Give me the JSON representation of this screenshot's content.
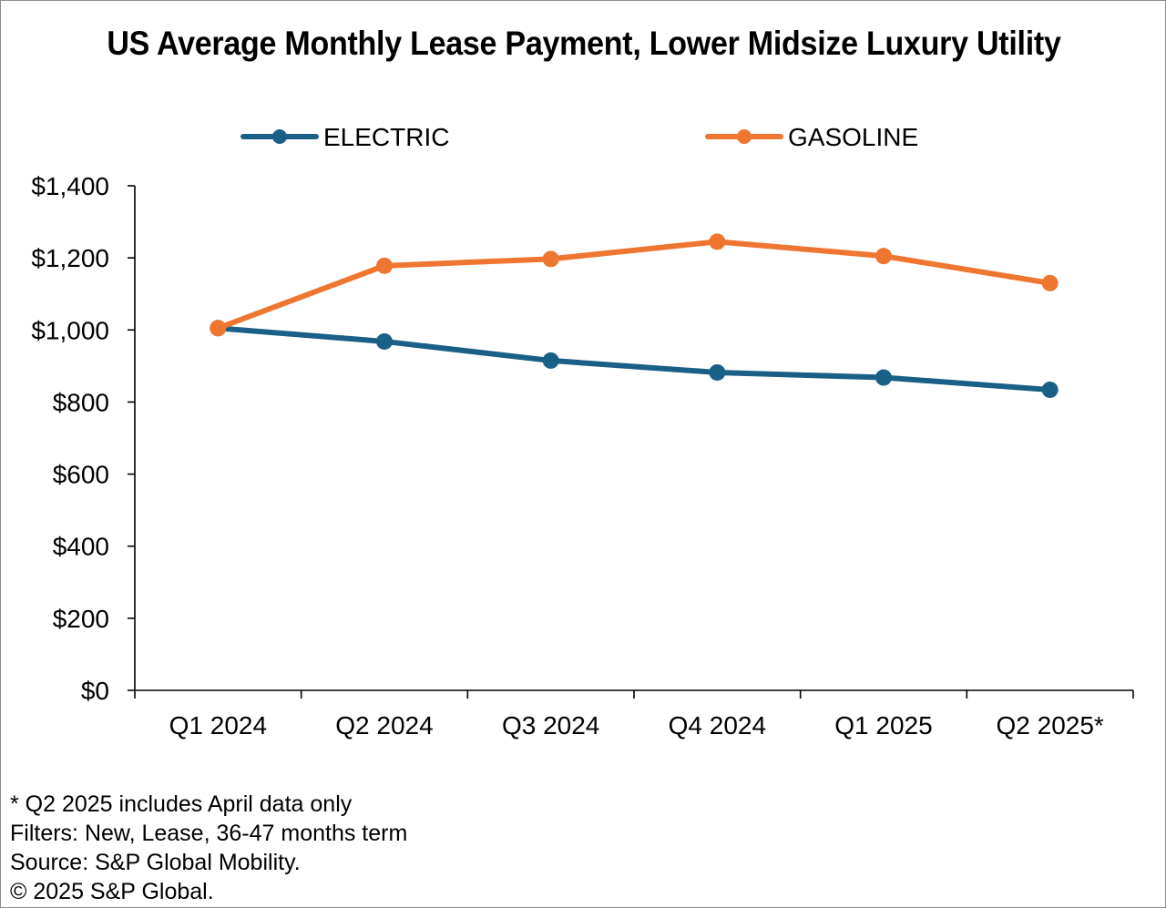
{
  "chart_data": {
    "type": "line",
    "title": "US Average Monthly Lease Payment, Lower Midsize  Luxury Utility",
    "categories": [
      "Q1 2024",
      "Q2 2024",
      "Q3 2024",
      "Q4 2024",
      "Q1 2025",
      "Q2 2025*"
    ],
    "series": [
      {
        "name": "ELECTRIC",
        "color": "#1a5f85",
        "values": [
          1005,
          968,
          915,
          882,
          868,
          834
        ]
      },
      {
        "name": "GASOLINE",
        "color": "#ee7631",
        "values": [
          1005,
          1178,
          1197,
          1245,
          1205,
          1130
        ]
      }
    ],
    "yticks": [
      "$0",
      "$200",
      "$400",
      "$600",
      "$800",
      "$1,000",
      "$1,200",
      "$1,400"
    ],
    "ylim": [
      0,
      1400
    ],
    "xlabel": "",
    "ylabel": "",
    "legend_position": "top",
    "grid": false
  },
  "footnotes": [
    "* Q2 2025 includes April data only",
    "Filters: New, Lease, 36-47 months term",
    "Source: S&P Global Mobility.",
    "© 2025 S&P Global."
  ]
}
